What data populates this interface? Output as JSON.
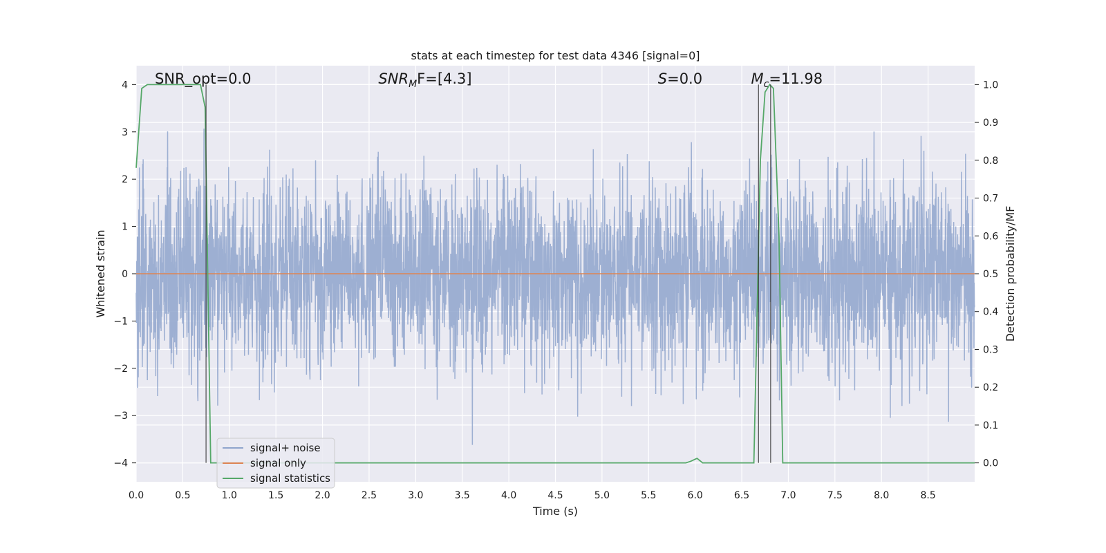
{
  "chart_data": {
    "type": "line",
    "title": "stats at each timestep for test data 4346 [signal=0]",
    "xlabel": "Time (s)",
    "ylabel": "Whitened strain",
    "y2label": "Detection probability/MF",
    "xlim": [
      0.0,
      9.0
    ],
    "ylim": [
      -4.4,
      4.4
    ],
    "y2lim": [
      -0.05,
      1.05
    ],
    "xticks": [
      "0.0",
      "0.5",
      "1.0",
      "1.5",
      "2.0",
      "2.5",
      "3.0",
      "3.5",
      "4.0",
      "4.5",
      "5.0",
      "5.5",
      "6.0",
      "6.5",
      "7.0",
      "7.5",
      "8.0",
      "8.5"
    ],
    "yticks": [
      "4",
      "3",
      "2",
      "1",
      "0",
      "−1",
      "−2",
      "−3",
      "−4"
    ],
    "y2ticks": [
      "1.0",
      "0.9",
      "0.8",
      "0.7",
      "0.6",
      "0.5",
      "0.4",
      "0.3",
      "0.2",
      "0.1",
      "0.0"
    ],
    "grid": true,
    "legend_position": "lower-left",
    "annotations": [
      {
        "text": "SNR_opt=0.0",
        "x": 0.2
      },
      {
        "text": "SNR",
        "sub": "M",
        "rest": "F=[4.3]",
        "x": 2.6
      },
      {
        "text": "S",
        "rest": "=0.0",
        "x": 5.6
      },
      {
        "text": "M",
        "sub": "c",
        "rest": "=11.98",
        "x": 6.6
      }
    ],
    "vlines": [
      0.75,
      6.68,
      6.81
    ],
    "series": [
      {
        "name": "signal+ noise",
        "color": "#8fa4cc",
        "kind": "noise",
        "std": 1.0,
        "ymin": -4.0,
        "ymax": 4.0,
        "x_start": 0.0,
        "x_end": 9.0
      },
      {
        "name": "signal only",
        "color": "#dd8452",
        "kind": "flat",
        "value": 0.0
      },
      {
        "name": "signal statistics",
        "color": "#55a868",
        "kind": "line",
        "axis": "y2",
        "x": [
          0.0,
          0.06,
          0.12,
          0.3,
          0.5,
          0.69,
          0.74,
          0.8,
          1.2,
          2.0,
          3.0,
          4.0,
          5.0,
          5.9,
          5.95,
          6.02,
          6.08,
          6.5,
          6.63,
          6.7,
          6.75,
          6.8,
          6.84,
          6.9,
          6.94,
          7.0,
          8.0,
          9.0
        ],
        "y": [
          0.78,
          0.99,
          1.0,
          1.0,
          1.0,
          1.0,
          0.94,
          0.0,
          0.0,
          0.0,
          0.0,
          0.0,
          0.0,
          0.0,
          0.004,
          0.012,
          0.0,
          0.0,
          0.0,
          0.8,
          0.98,
          1.0,
          0.99,
          0.6,
          0.0,
          0.0,
          0.0,
          0.0
        ]
      }
    ]
  }
}
